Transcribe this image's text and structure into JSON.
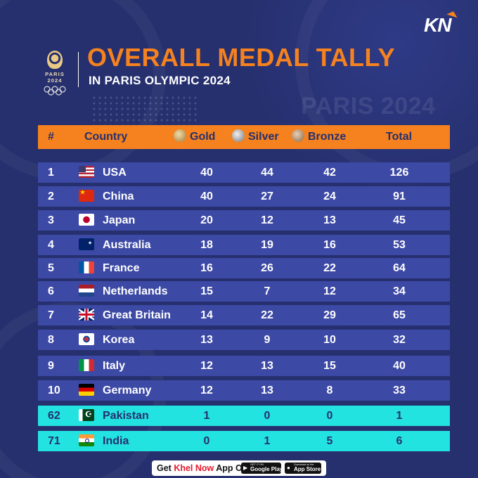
{
  "brand": "KN",
  "logo": {
    "text": "PARIS 2024"
  },
  "title": "OVERALL MEDAL TALLY",
  "subtitle": "IN PARIS OLYMPIC 2024",
  "watermark": "PARIS 2024",
  "colors": {
    "background": "#26306e",
    "accent": "#f5821f",
    "row": "#3c4aa6",
    "highlight_row": "#23e3e0"
  },
  "table": {
    "headers": {
      "rank": "#",
      "country": "Country",
      "gold": "Gold",
      "silver": "Silver",
      "bronze": "Bronze",
      "total": "Total"
    },
    "rows": [
      {
        "rank": "1",
        "country": "USA",
        "flag": "flag-usa-icon",
        "gold": "40",
        "silver": "44",
        "bronze": "42",
        "total": "126",
        "highlight": false
      },
      {
        "rank": "2",
        "country": "China",
        "flag": "flag-china-icon",
        "gold": "40",
        "silver": "27",
        "bronze": "24",
        "total": "91",
        "highlight": false
      },
      {
        "rank": "3",
        "country": "Japan",
        "flag": "flag-japan-icon",
        "gold": "20",
        "silver": "12",
        "bronze": "13",
        "total": "45",
        "highlight": false
      },
      {
        "rank": "4",
        "country": "Australia",
        "flag": "flag-australia-icon",
        "gold": "18",
        "silver": "19",
        "bronze": "16",
        "total": "53",
        "highlight": false
      },
      {
        "rank": "5",
        "country": "France",
        "flag": "flag-france-icon",
        "gold": "16",
        "silver": "26",
        "bronze": "22",
        "total": "64",
        "highlight": false
      },
      {
        "rank": "6",
        "country": "Netherlands",
        "flag": "flag-netherlands-icon",
        "gold": "15",
        "silver": "7",
        "bronze": "12",
        "total": "34",
        "highlight": false
      },
      {
        "rank": "7",
        "country": "Great Britain",
        "flag": "flag-great-britain-icon",
        "gold": "14",
        "silver": "22",
        "bronze": "29",
        "total": "65",
        "highlight": false
      },
      {
        "rank": "8",
        "country": "Korea",
        "flag": "flag-korea-icon",
        "gold": "13",
        "silver": "9",
        "bronze": "10",
        "total": "32",
        "highlight": false
      },
      {
        "rank": "9",
        "country": "Italy",
        "flag": "flag-italy-icon",
        "gold": "12",
        "silver": "13",
        "bronze": "15",
        "total": "40",
        "highlight": false
      },
      {
        "rank": "10",
        "country": "Germany",
        "flag": "flag-germany-icon",
        "gold": "12",
        "silver": "13",
        "bronze": "8",
        "total": "33",
        "highlight": false
      },
      {
        "rank": "62",
        "country": "Pakistan",
        "flag": "flag-pakistan-icon",
        "gold": "1",
        "silver": "0",
        "bronze": "0",
        "total": "1",
        "highlight": true
      },
      {
        "rank": "71",
        "country": "India",
        "flag": "flag-india-icon",
        "gold": "0",
        "silver": "1",
        "bronze": "5",
        "total": "6",
        "highlight": true
      }
    ]
  },
  "footer": {
    "prefix": "Get ",
    "accent": "Khel Now",
    "suffix": " App On",
    "google_play": {
      "small": "GET IT ON",
      "label": "Google Play"
    },
    "app_store": {
      "small": "Download on the",
      "label": "App Store"
    }
  }
}
